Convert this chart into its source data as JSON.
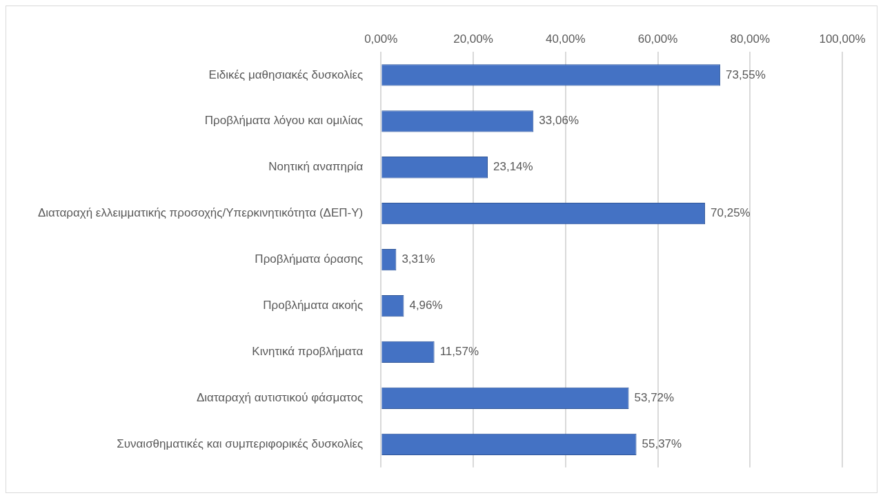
{
  "chart_data": {
    "type": "bar",
    "orientation": "horizontal",
    "categories": [
      "Ειδικές μαθησιακές δυσκολίες",
      "Προβλήματα λόγου και ομιλίας",
      "Νοητική αναπηρία",
      "Διαταραχή ελλειμματικής προσοχής/Υπερκινητικότητα (ΔΕΠ-Υ)",
      "Προβλήματα όρασης",
      "Προβλήματα ακοής",
      "Κινητικά προβλήματα",
      "Διαταραχή αυτιστικού φάσματος",
      "Συναισθηματικές και συμπεριφορικές δυσκολίες"
    ],
    "values": [
      73.55,
      33.06,
      23.14,
      70.25,
      3.31,
      4.96,
      11.57,
      53.72,
      55.37
    ],
    "value_labels": [
      "73,55%",
      "33,06%",
      "23,14%",
      "70,25%",
      "3,31%",
      "4,96%",
      "11,57%",
      "53,72%",
      "55,37%"
    ],
    "color": "#4472c4",
    "xlim": [
      0,
      100
    ],
    "xticks": [
      {
        "value": 0,
        "label": "0,00%"
      },
      {
        "value": 20,
        "label": "20,00%"
      },
      {
        "value": 40,
        "label": "40,00%"
      },
      {
        "value": 60,
        "label": "60,00%"
      },
      {
        "value": 80,
        "label": "80,00%"
      },
      {
        "value": 100,
        "label": "100,00%"
      }
    ],
    "grid": "x",
    "legend": false
  }
}
